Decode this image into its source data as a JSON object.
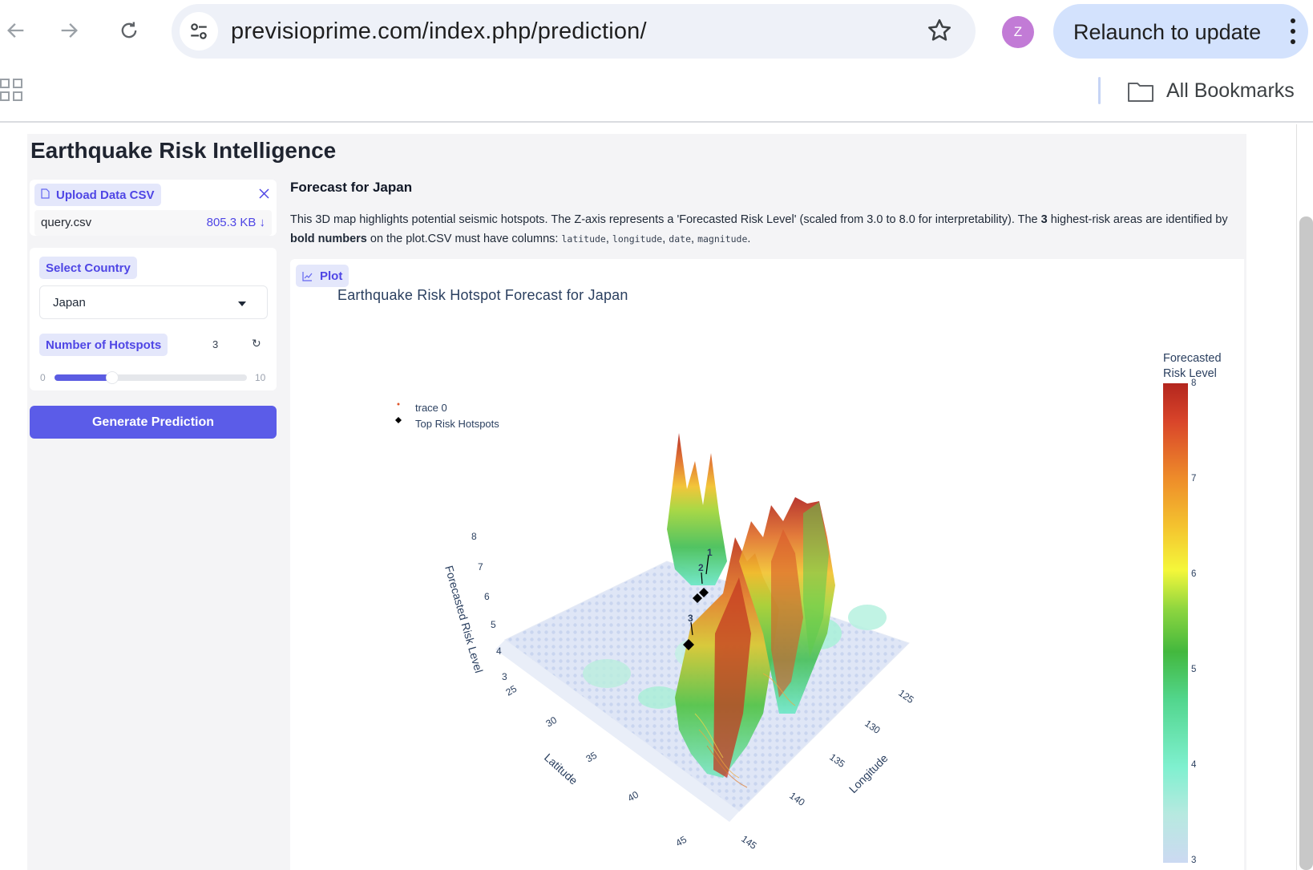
{
  "browser": {
    "url": "previsioprime.com/index.php/prediction/",
    "profile_initial": "Z",
    "relaunch_label": "Relaunch to update",
    "bookmarks_label": "All Bookmarks"
  },
  "app": {
    "title": "Earthquake Risk Intelligence",
    "upload": {
      "label": "Upload Data CSV",
      "file_name": "query.csv",
      "file_size": "805.3 KB ↓"
    },
    "country": {
      "label": "Select Country",
      "value": "Japan"
    },
    "hotspots": {
      "label": "Number of Hotspots",
      "value": "3",
      "min": "0",
      "max": "10",
      "fraction": 0.3
    },
    "generate_label": "Generate Prediction"
  },
  "forecast": {
    "heading": "Forecast for Japan",
    "desc_1": "This 3D map highlights potential seismic hotspots. The Z-axis represents a 'Forecasted Risk Level' (scaled from 3.0 to 8.0 for interpretability). The ",
    "desc_count": "3",
    "desc_2": " highest-risk areas are identified by ",
    "desc_bold": "bold numbers",
    "desc_3": " on the plot.CSV must have columns: ",
    "col_1": "latitude",
    "col_2": "longitude",
    "col_3": "date",
    "col_4": "magnitude",
    "sep": ", ",
    "end": "."
  },
  "plot": {
    "tab_label": "Plot",
    "title": "Earthquake Risk Hotspot Forecast for Japan",
    "legend": [
      "trace 0",
      "Top Risk Hotspots"
    ],
    "colorbar_title_1": "Forecasted",
    "colorbar_title_2": "Risk Level",
    "colorbar_ticks": [
      "8",
      "7",
      "6",
      "5",
      "4",
      "3"
    ],
    "z_axis_label": "Forecasted Risk Level",
    "z_ticks": [
      "8",
      "7",
      "6",
      "5",
      "4",
      "3"
    ],
    "lat_axis_label": "Latitude",
    "lat_ticks": [
      "25",
      "30",
      "35",
      "40",
      "45"
    ],
    "lon_axis_label": "Longitude",
    "lon_ticks": [
      "125",
      "130",
      "135",
      "140",
      "145"
    ],
    "hotspot_labels": [
      "1",
      "2",
      "3"
    ],
    "colorscale": [
      "#ccd9f2",
      "#7ff0cf",
      "#43b83e",
      "#f4f73a",
      "#ee8d2a",
      "#b3261e"
    ]
  }
}
